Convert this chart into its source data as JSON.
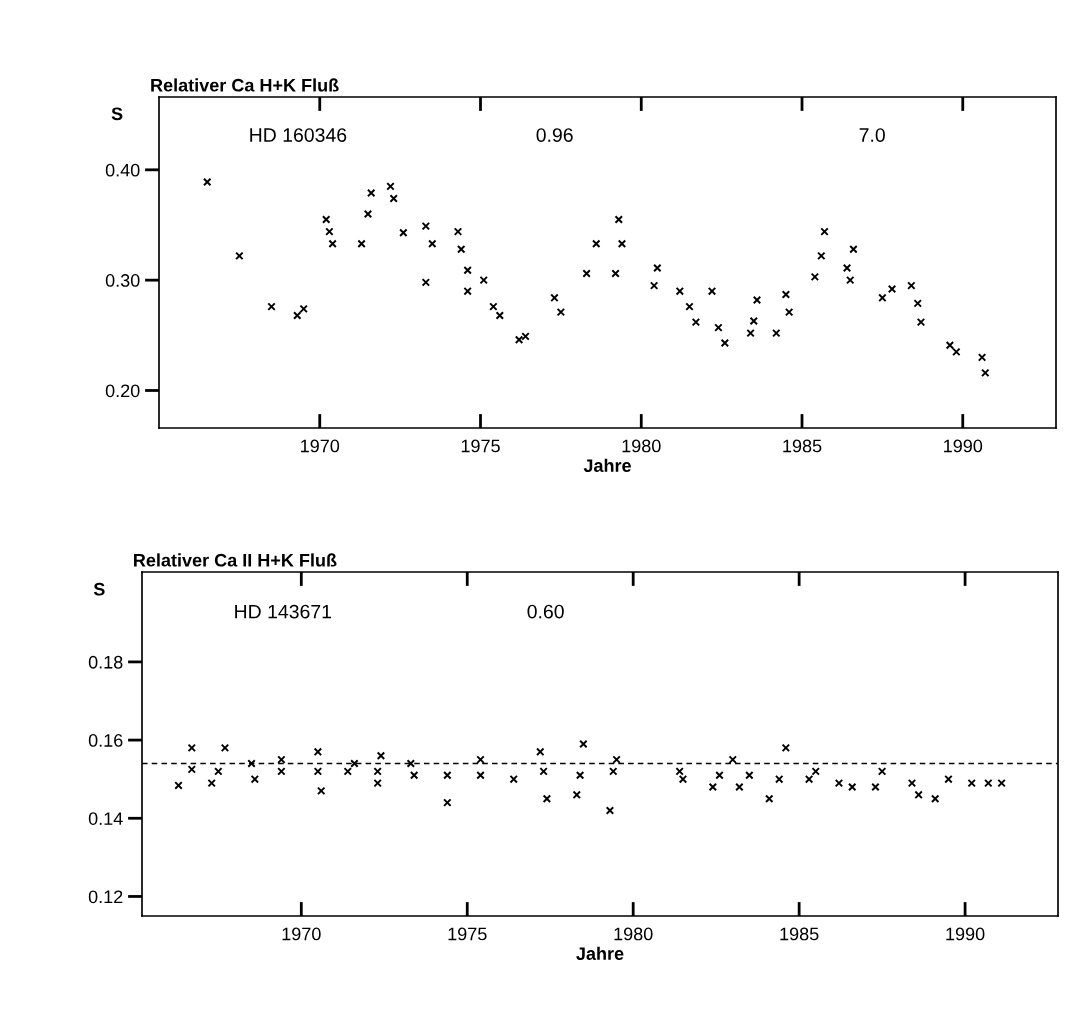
{
  "chart_data": [
    {
      "type": "scatter",
      "title": "Relativer Ca H+K Fluß",
      "xlabel": "Jahre",
      "ylabel": "S",
      "annotations": [
        "HD 160346",
        "0.96",
        "7.0"
      ],
      "series": [
        {
          "color": "#000000",
          "marker": "cross",
          "x": [
            1966.5,
            1967.5,
            1968.5,
            1969.3,
            1969.5,
            1970.3,
            1970.4,
            1970.2,
            1971.3,
            1971.5,
            1971.6,
            1972.3,
            1972.2,
            1972.6,
            1973.3,
            1973.3,
            1973.5,
            1974.3,
            1974.4,
            1974.6,
            1974.6,
            1975.1,
            1975.4,
            1975.6,
            1976.2,
            1976.4,
            1977.3,
            1977.5,
            1978.3,
            1978.6,
            1979.2,
            1979.3,
            1979.4,
            1980.5,
            1980.4,
            1981.2,
            1981.5,
            1981.7,
            1982.2,
            1982.4,
            1982.6,
            1983.4,
            1983.5,
            1983.6,
            1984.2,
            1984.5,
            1984.6,
            1985.4,
            1985.6,
            1985.7,
            1986.4,
            1986.5,
            1986.6,
            1987.5,
            1987.8,
            1988.4,
            1988.6,
            1988.7,
            1989.6,
            1989.8,
            1990.6,
            1990.7
          ],
          "values": [
            0.389,
            0.322,
            0.276,
            0.268,
            0.274,
            0.344,
            0.333,
            0.355,
            0.333,
            0.36,
            0.379,
            0.374,
            0.385,
            0.343,
            0.349,
            0.298,
            0.333,
            0.344,
            0.328,
            0.309,
            0.29,
            0.3,
            0.276,
            0.268,
            0.246,
            0.249,
            0.284,
            0.271,
            0.306,
            0.333,
            0.306,
            0.355,
            0.333,
            0.311,
            0.295,
            0.29,
            0.276,
            0.262,
            0.29,
            0.257,
            0.243,
            0.252,
            0.263,
            0.282,
            0.252,
            0.287,
            0.271,
            0.303,
            0.322,
            0.344,
            0.311,
            0.3,
            0.328,
            0.284,
            0.292,
            0.295,
            0.279,
            0.262,
            0.241,
            0.235,
            0.23,
            0.216
          ]
        }
      ],
      "xlim": [
        1965.0,
        1992.9
      ],
      "ylim": [
        0.166,
        0.466
      ],
      "xticks": [
        1970,
        1975,
        1980,
        1985,
        1990
      ],
      "yticks": [
        {
          "value": 0.2,
          "label": "0.20"
        },
        {
          "value": 0.3,
          "label": "0.30"
        },
        {
          "value": 0.4,
          "label": "0.40"
        }
      ],
      "grid": false,
      "legend": false
    },
    {
      "type": "scatter",
      "title": "Relativer Ca II H+K Fluß",
      "xlabel": "Jahre",
      "ylabel": "S",
      "annotations": [
        "HD 143671",
        "0.60"
      ],
      "series": [
        {
          "color": "#000000",
          "marker": "cross",
          "x": [
            1966.3,
            1966.7,
            1966.7,
            1967.3,
            1967.5,
            1967.7,
            1968.5,
            1968.6,
            1969.4,
            1969.4,
            1970.5,
            1970.5,
            1970.6,
            1971.4,
            1971.6,
            1972.3,
            1972.4,
            1972.3,
            1973.4,
            1973.3,
            1974.4,
            1974.4,
            1975.4,
            1975.4,
            1976.4,
            1977.3,
            1977.4,
            1977.2,
            1978.4,
            1978.5,
            1978.3,
            1979.4,
            1979.3,
            1979.5,
            1981.4,
            1981.5,
            1982.4,
            1982.6,
            1983.0,
            1983.2,
            1983.5,
            1984.1,
            1984.4,
            1984.6,
            1985.3,
            1985.5,
            1986.2,
            1986.6,
            1987.3,
            1987.5,
            1988.4,
            1988.6,
            1989.1,
            1989.5,
            1990.2,
            1990.7,
            1991.1
          ],
          "values": [
            0.1484,
            0.158,
            0.1525,
            0.149,
            0.152,
            0.158,
            0.154,
            0.15,
            0.152,
            0.155,
            0.152,
            0.157,
            0.147,
            0.152,
            0.154,
            0.152,
            0.156,
            0.149,
            0.151,
            0.154,
            0.151,
            0.144,
            0.151,
            0.155,
            0.15,
            0.152,
            0.145,
            0.157,
            0.151,
            0.159,
            0.146,
            0.152,
            0.142,
            0.155,
            0.152,
            0.15,
            0.148,
            0.151,
            0.155,
            0.148,
            0.151,
            0.145,
            0.15,
            0.158,
            0.15,
            0.152,
            0.149,
            0.148,
            0.148,
            0.152,
            0.149,
            0.146,
            0.145,
            0.15,
            0.149,
            0.149,
            0.149
          ]
        }
      ],
      "ref_lines": [
        {
          "axis": "y",
          "value": 0.154,
          "color": "#000000",
          "line_style": "dashed"
        }
      ],
      "xlim": [
        1965.2,
        1992.8
      ],
      "ylim": [
        0.115,
        0.203
      ],
      "xticks": [
        1970,
        1975,
        1980,
        1985,
        1990
      ],
      "yticks": [
        {
          "value": 0.12,
          "label": "0.12"
        },
        {
          "value": 0.14,
          "label": "0.14"
        },
        {
          "value": 0.16,
          "label": "0.16"
        },
        {
          "value": 0.18,
          "label": "0.18"
        }
      ],
      "grid": false,
      "legend": false
    }
  ]
}
